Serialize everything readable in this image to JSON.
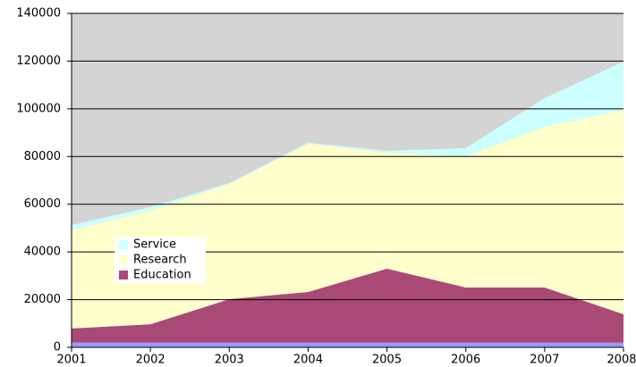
{
  "chart_data": {
    "type": "stacked_area",
    "x": [
      2001,
      2002,
      2003,
      2004,
      2005,
      2006,
      2007,
      2008
    ],
    "series": [
      {
        "color": "#9999ff",
        "values": [
          2000,
          2000,
          2000,
          2000,
          2000,
          2000,
          2000,
          2000
        ]
      },
      {
        "name": "Education",
        "color": "#a94a76",
        "values": [
          5900,
          7700,
          18200,
          21200,
          31000,
          23100,
          23100,
          11900
        ]
      },
      {
        "name": "Research",
        "color": "#ffffcc",
        "values": [
          41200,
          47600,
          48300,
          62200,
          48600,
          55000,
          67400,
          85700
        ]
      },
      {
        "name": "Service",
        "color": "#ccffff",
        "values": [
          2200,
          1500,
          400,
          400,
          800,
          3400,
          12000,
          20200
        ]
      }
    ],
    "xlim": [
      2001,
      2008
    ],
    "ylim": [
      0,
      140000
    ],
    "yticks": [
      0,
      20000,
      40000,
      60000,
      80000,
      100000,
      120000,
      140000
    ],
    "grid": true,
    "plot_background": "#d4d4d4"
  }
}
